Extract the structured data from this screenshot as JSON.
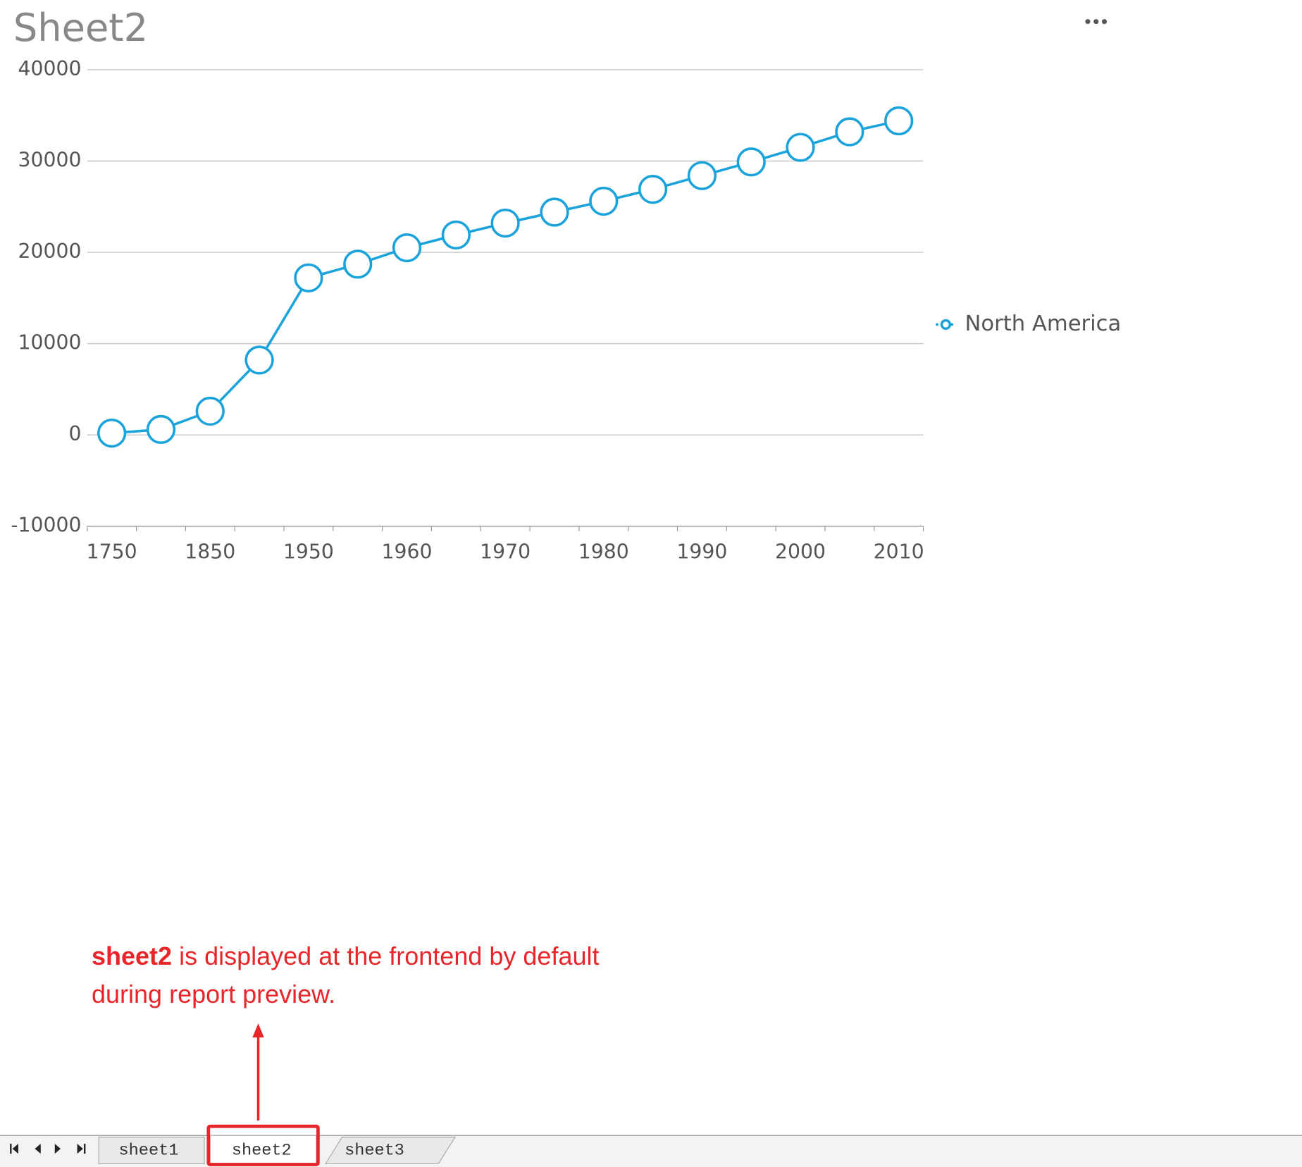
{
  "chart_data": {
    "type": "line",
    "title": "Sheet2",
    "categories": [
      "1750",
      null,
      "1850",
      null,
      "1950",
      null,
      "1960",
      null,
      "1970",
      null,
      "1980",
      null,
      "1990",
      null,
      "2000",
      null,
      "2010"
    ],
    "series": [
      {
        "name": "North America",
        "color": "#1aa3db",
        "values": [
          200,
          600,
          2600,
          8200,
          17200,
          18700,
          20500,
          21900,
          23200,
          24400,
          25600,
          26900,
          28400,
          29900,
          31500,
          33200,
          34400
        ]
      }
    ],
    "ylim": [
      -10000,
      40000
    ],
    "yticks": [
      -10000,
      0,
      10000,
      20000,
      30000,
      40000
    ],
    "grid": true,
    "legend": "right"
  },
  "annotation": {
    "bold": "sheet2",
    "text": "is displayed at the frontend by default during report preview."
  },
  "tabs": [
    "sheet1",
    "sheet2",
    "sheet3"
  ]
}
